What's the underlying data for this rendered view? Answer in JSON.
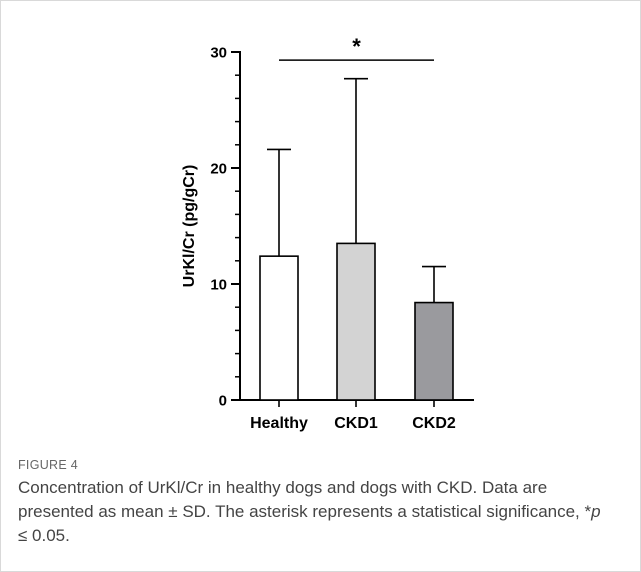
{
  "chart_data": {
    "type": "bar",
    "title": "",
    "xlabel": "",
    "ylabel": "UrKl/Cr (pg/gCr)",
    "ylim": [
      0,
      30
    ],
    "yticks": [
      "0",
      "10",
      "20",
      "30"
    ],
    "categories": [
      "Healthy",
      "CKD1",
      "CKD2"
    ],
    "values": [
      12.4,
      13.5,
      8.4
    ],
    "errors": [
      9.2,
      14.2,
      3.1
    ],
    "bar_colors": [
      "#ffffff",
      "#d3d3d3",
      "#9a9a9e"
    ],
    "error_style": "upper cap only",
    "grid": false,
    "significance": {
      "from": "Healthy",
      "to": "CKD2",
      "at_y": 29.3,
      "label": "*"
    }
  },
  "caption": {
    "figure_label": "FIGURE 4",
    "text_before": "Concentration of UrKl/Cr in healthy dogs and dogs with CKD. Data are presented as mean ± SD. The asterisk represents a statistical significance, *",
    "p_symbol": "p",
    "text_after": " ≤ 0.05."
  }
}
